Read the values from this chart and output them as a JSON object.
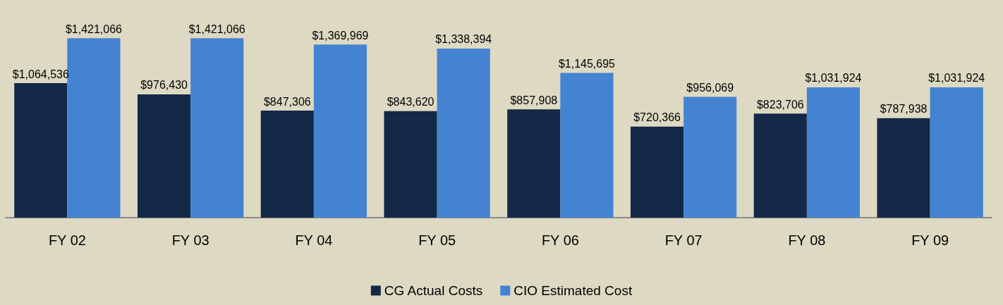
{
  "chart_data": {
    "type": "bar",
    "categories": [
      "FY 02",
      "FY 03",
      "FY 04",
      "FY 05",
      "FY 06",
      "FY 07",
      "FY 08",
      "FY 09"
    ],
    "series": [
      {
        "name": "CG Actual Costs",
        "color": "#142847",
        "values": [
          1064536,
          976430,
          847306,
          843620,
          857908,
          720366,
          823706,
          787938
        ],
        "value_labels": [
          "$1,064,536",
          "$976,430",
          "$847,306",
          "$843,620",
          "$857,908",
          "$720,366",
          "$823,706",
          "$787,938"
        ]
      },
      {
        "name": "CIO Estimated Cost",
        "color": "#4483d1",
        "values": [
          1421066,
          1421066,
          1369969,
          1338394,
          1145695,
          956069,
          1031924,
          1031924
        ],
        "value_labels": [
          "$1,421,066",
          "$1,421,066",
          "$1,369,969",
          "$1,338,394",
          "$1,145,695",
          "$956,069",
          "$1,031,924",
          "$1,031,924"
        ]
      }
    ],
    "grid": false,
    "legend": "bottom"
  }
}
